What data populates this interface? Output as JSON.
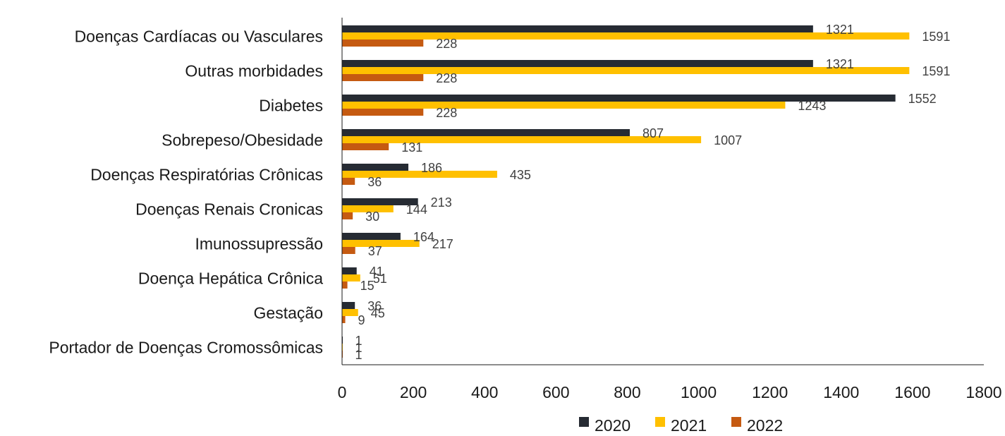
{
  "chart_data": {
    "type": "bar",
    "orientation": "horizontal",
    "categories": [
      "Doenças Cardíacas ou Vasculares",
      "Outras morbidades",
      "Diabetes",
      "Sobrepeso/Obesidade",
      "Doenças Respiratórias Crônicas",
      "Doenças Renais Cronicas",
      "Imunossupressão",
      "Doença Hepática Crônica",
      "Gestação",
      "Portador de Doenças Cromossômicas"
    ],
    "series": [
      {
        "name": "2020",
        "color": "#262b33",
        "values": [
          1321,
          1321,
          1552,
          807,
          186,
          213,
          164,
          41,
          36,
          1
        ]
      },
      {
        "name": "2021",
        "color": "#ffc000",
        "values": [
          1591,
          1591,
          1243,
          1007,
          435,
          144,
          217,
          51,
          45,
          1
        ]
      },
      {
        "name": "2022",
        "color": "#c55a11",
        "values": [
          228,
          228,
          228,
          131,
          36,
          30,
          37,
          15,
          9,
          1
        ]
      }
    ],
    "x_ticks": [
      "0",
      "200",
      "400",
      "600",
      "800",
      "1000",
      "1200",
      "1400",
      "1600",
      "1800"
    ],
    "xlim": [
      0,
      1800
    ],
    "title": "",
    "xlabel": "",
    "ylabel": "",
    "grid": false,
    "data_labels": true,
    "legend_position": "bottom"
  }
}
